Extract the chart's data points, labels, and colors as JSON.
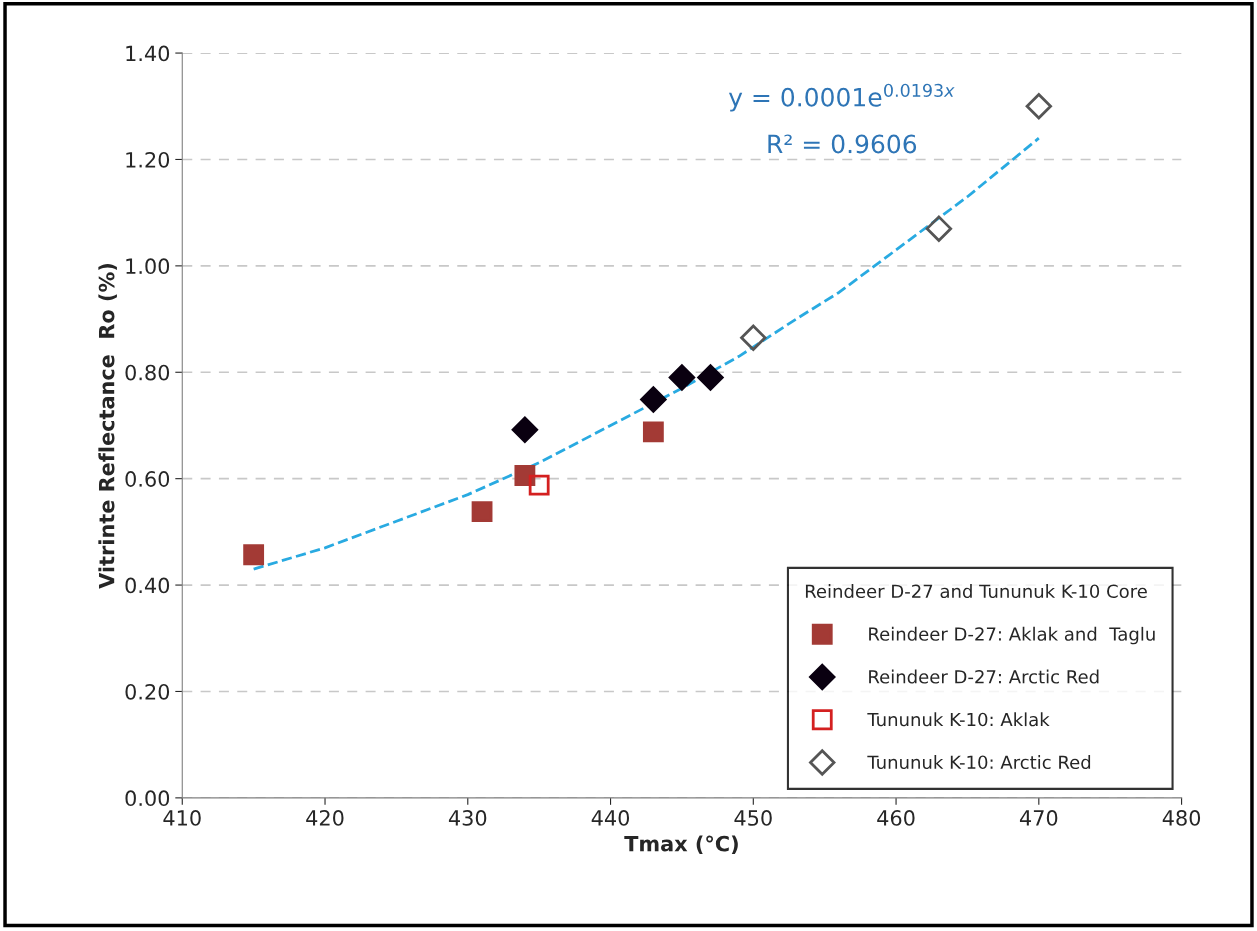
{
  "chart_data": {
    "type": "scatter",
    "xlabel": "Tmax (°C)",
    "ylabel": "Vitrinte Reflectance  Ro (%)",
    "legend_title": "Reindeer D-27 and Tununuk K-10 Core",
    "legend": "bottom right",
    "grid": "y",
    "xlim": [
      410,
      480
    ],
    "xticks": [
      410,
      420,
      430,
      440,
      450,
      460,
      470,
      480
    ],
    "ylim": [
      0,
      1.4
    ],
    "yticks": [
      {
        "value": 0,
        "label": "0.00"
      },
      {
        "value": 0.2,
        "label": "0.20"
      },
      {
        "value": 0.4,
        "label": "0.40"
      },
      {
        "value": 0.6,
        "label": "0.60"
      },
      {
        "value": 0.8,
        "label": "0.80"
      },
      {
        "value": 1.0,
        "label": "1.00"
      },
      {
        "value": 1.2,
        "label": "1.20"
      },
      {
        "value": 1.4,
        "label": "1.40"
      }
    ],
    "annotations": [
      "y = 0.0001e$^{0.0193x}$",
      "R² = 0.9606"
    ],
    "series": [
      {
        "name": "Reindeer D-27: Aklak and  Taglu",
        "color": "#a33a35",
        "marker": "square",
        "x": [
          415,
          431,
          434,
          443
        ],
        "values": [
          0.457,
          0.538,
          0.606,
          0.688
        ]
      },
      {
        "name": "Reindeer D-27: Arctic Red",
        "color": "#0a0010",
        "marker": "diamond",
        "x": [
          434,
          443,
          445,
          447
        ],
        "values": [
          0.692,
          0.749,
          0.79,
          0.79
        ]
      },
      {
        "name": "Tununuk K-10: Aklak",
        "color": "#d42020",
        "marker": "square",
        "x": [
          435
        ],
        "values": [
          0.588
        ]
      },
      {
        "name": "Tununuk K-10: Arctic Red",
        "color": "#555555",
        "marker": "diamond",
        "x": [
          450,
          463,
          470
        ],
        "values": [
          0.865,
          1.07,
          1.3
        ]
      },
      {
        "type": "line",
        "color": "#29aae1",
        "line_style": "dashed",
        "x": [
          415,
          420,
          425,
          430,
          435,
          440,
          445,
          449,
          453,
          456,
          460,
          465,
          470
        ],
        "values": [
          0.43,
          0.47,
          0.52,
          0.57,
          0.63,
          0.7,
          0.77,
          0.83,
          0.9,
          0.95,
          1.03,
          1.13,
          1.24
        ]
      }
    ]
  }
}
